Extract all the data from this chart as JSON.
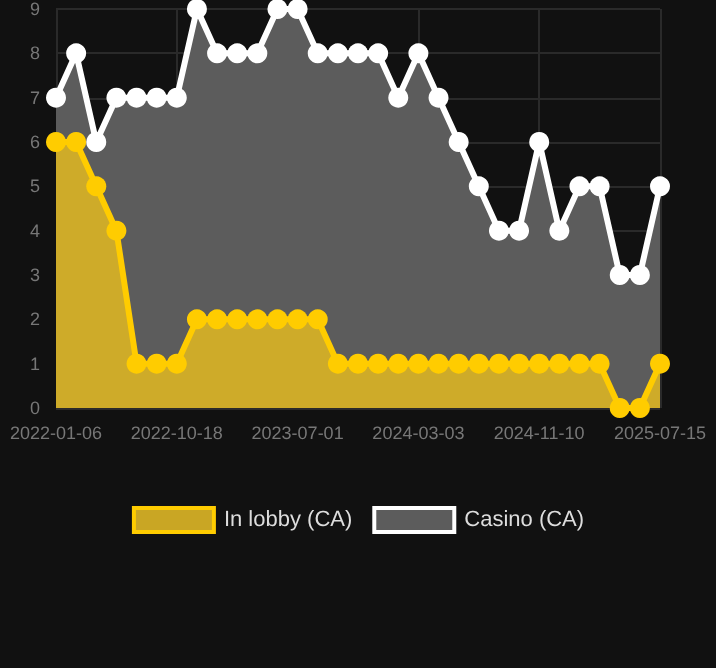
{
  "chart_data": {
    "type": "area",
    "categories": [
      "2022-01-06",
      null,
      null,
      null,
      null,
      null,
      "2022-10-18",
      null,
      null,
      null,
      null,
      null,
      "2023-07-01",
      null,
      null,
      null,
      null,
      null,
      "2024-03-03",
      null,
      null,
      null,
      null,
      null,
      "2024-11-10",
      null,
      null,
      null,
      null,
      null,
      "2025-07-15"
    ],
    "series": [
      {
        "name": "In lobby (CA)",
        "color": "#ffcc00",
        "values": [
          6,
          6,
          5,
          4,
          1,
          1,
          1,
          2,
          2,
          2,
          2,
          2,
          2,
          2,
          1,
          1,
          1,
          1,
          1,
          1,
          1,
          1,
          1,
          1,
          1,
          1,
          1,
          1,
          0,
          0,
          1
        ]
      },
      {
        "name": "Casino (CA)",
        "color": "#ffffff",
        "values": [
          7,
          8,
          6,
          7,
          7,
          7,
          7,
          9,
          8,
          8,
          8,
          9,
          9,
          8,
          8,
          8,
          8,
          7,
          8,
          7,
          6,
          5,
          4,
          4,
          6,
          4,
          5,
          5,
          3,
          3,
          5
        ]
      }
    ],
    "ylim": [
      0,
      9
    ],
    "yticks": [
      0,
      1,
      2,
      3,
      4,
      5,
      6,
      7,
      8,
      9
    ],
    "grid": true,
    "legend": "bottom",
    "marker": "circle"
  }
}
